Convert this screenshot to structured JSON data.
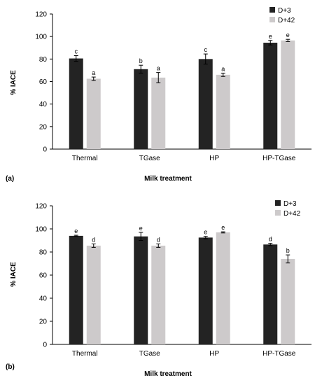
{
  "chart_data": [
    {
      "type": "bar",
      "panel_label": "(a)",
      "categories": [
        "Thermal",
        "TGase",
        "HP",
        "HP-TGase"
      ],
      "series": [
        {
          "name": "D+3",
          "values": [
            80.5,
            71,
            80,
            94.5
          ],
          "errors": [
            2.5,
            3.5,
            4.5,
            2
          ],
          "letters": [
            "c",
            "b",
            "c",
            "e"
          ],
          "color": "#232323"
        },
        {
          "name": "D+42",
          "values": [
            62.5,
            63.5,
            66,
            96.5
          ],
          "errors": [
            1.5,
            4.5,
            1.5,
            1
          ],
          "letters": [
            "a",
            "a",
            "a",
            "e"
          ],
          "color": "#cdcacb"
        }
      ],
      "xlabel": "Milk treatment",
      "ylabel": "% IACE",
      "ylim": [
        0,
        120
      ],
      "yticks": [
        "0",
        "20",
        "40",
        "60",
        "80",
        "100",
        "120"
      ],
      "legend_placement": "top-right",
      "grid": false
    },
    {
      "type": "bar",
      "panel_label": "(b)",
      "categories": [
        "Thermal",
        "TGase",
        "HP",
        "HP-TGase"
      ],
      "series": [
        {
          "name": "D+3",
          "values": [
            94,
            93.5,
            92.5,
            86.5
          ],
          "errors": [
            0.5,
            3.5,
            1,
            1
          ],
          "letters": [
            "e",
            "e",
            "e",
            "d"
          ],
          "color": "#232323"
        },
        {
          "name": "D+42",
          "values": [
            85.5,
            85.5,
            97,
            74
          ],
          "errors": [
            1.5,
            1.5,
            0.5,
            3.5
          ],
          "letters": [
            "d",
            "d",
            "e",
            "b"
          ],
          "color": "#cdcacb"
        }
      ],
      "xlabel": "Milk treatment",
      "ylabel": "% IACE",
      "ylim": [
        0,
        120
      ],
      "yticks": [
        "0",
        "20",
        "40",
        "60",
        "80",
        "100",
        "120"
      ],
      "legend_placement": "top-right",
      "grid": false
    }
  ]
}
